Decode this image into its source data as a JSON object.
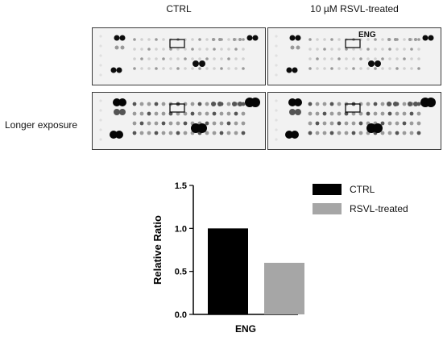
{
  "panels": {
    "ctrl_title": "CTRL",
    "treated_title": "10 µM RSVL-treated",
    "eng_label": "ENG",
    "row_label": "Longer exposure"
  },
  "chart_data": {
    "type": "bar",
    "categories": [
      "CTRL",
      "RSVL-treated"
    ],
    "values": [
      1.0,
      0.6
    ],
    "xlabel": "ENG",
    "ylabel": "Relative Ratio",
    "ylim": [
      0,
      1.5
    ],
    "yticks": [
      "0.0",
      "0.5",
      "1.0",
      "1.5"
    ],
    "colors": [
      "#000000",
      "#a6a6a6"
    ],
    "grid": false,
    "legend": "top-right",
    "series": [
      {
        "name": "CTRL",
        "values": [
          1.0,
          null
        ]
      },
      {
        "name": "RSVL-treated",
        "values": [
          null,
          0.6
        ]
      }
    ]
  }
}
